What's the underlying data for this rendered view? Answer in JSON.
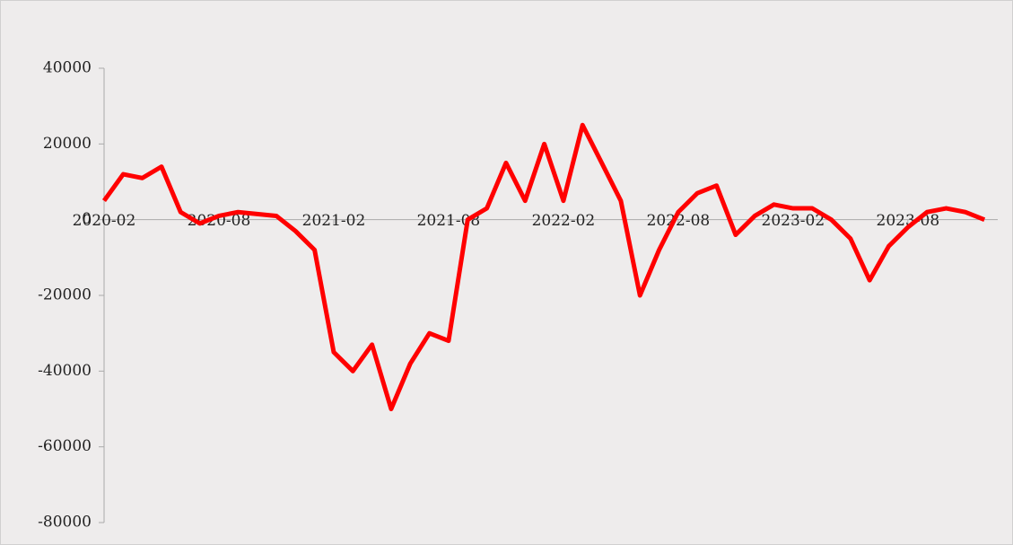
{
  "chart_data": {
    "type": "line",
    "x": [
      "2020-02",
      "2020-03",
      "2020-04",
      "2020-05",
      "2020-06",
      "2020-07",
      "2020-08",
      "2020-09",
      "2020-10",
      "2020-11",
      "2020-12",
      "2021-01",
      "2021-02",
      "2021-03",
      "2021-04",
      "2021-05",
      "2021-06",
      "2021-07",
      "2021-08",
      "2021-09",
      "2021-10",
      "2021-11",
      "2021-12",
      "2022-01",
      "2022-02",
      "2022-03",
      "2022-04",
      "2022-05",
      "2022-06",
      "2022-07",
      "2022-08",
      "2022-09",
      "2022-10",
      "2022-11",
      "2022-12",
      "2023-01",
      "2023-02",
      "2023-03",
      "2023-04",
      "2023-05",
      "2023-06",
      "2023-07",
      "2023-08",
      "2023-09",
      "2023-10",
      "2023-11",
      "2023-12"
    ],
    "series": [
      {
        "color": "#ff0000",
        "values": [
          5000,
          12000,
          11000,
          14000,
          2000,
          -1000,
          1000,
          2000,
          1500,
          1000,
          -3000,
          -8000,
          -35000,
          -40000,
          -33000,
          -50000,
          -38000,
          -30000,
          -32000,
          0,
          3000,
          15000,
          5000,
          20000,
          5000,
          25000,
          15000,
          5000,
          -20000,
          -8000,
          2000,
          7000,
          9000,
          -4000,
          1000,
          4000,
          3000,
          3000,
          0,
          -5000,
          -16000,
          -7000,
          -2000,
          2000,
          3000,
          2000,
          0
        ]
      }
    ],
    "xticks": [
      "2020-02",
      "2020-08",
      "2021-02",
      "2021-08",
      "2022-02",
      "2022-08",
      "2023-02",
      "2023-08"
    ],
    "ylim": [
      -80000,
      40000
    ],
    "yticks": [
      -80000,
      -60000,
      -40000,
      -20000,
      0,
      20000,
      40000
    ]
  }
}
